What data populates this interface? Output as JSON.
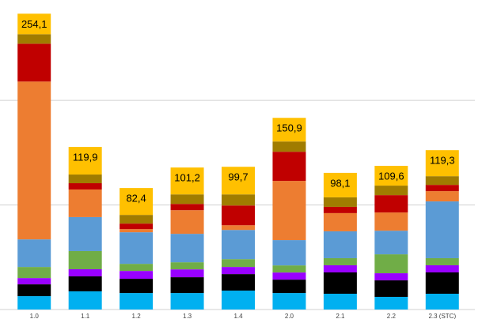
{
  "chart_data": {
    "type": "stacked_bar",
    "categories": [
      "1.0",
      "1.1",
      "1.2",
      "1.3",
      "1.4",
      "2.0",
      "2.1",
      "2.2",
      "2.3 (STC)"
    ],
    "series": [
      {
        "color": "#00b0f0",
        "values": [
          12.8,
          17.4,
          15.8,
          15.8,
          18.1,
          15.8,
          15.1,
          12.1,
          15.1
        ]
      },
      {
        "color": "#000000",
        "values": [
          11.3,
          14.3,
          13.6,
          15.1,
          15.8,
          12.8,
          20.4,
          15.8,
          20.4
        ]
      },
      {
        "color": "#9900ff",
        "values": [
          6,
          6.8,
          7.5,
          7.5,
          6.8,
          6.8,
          6.8,
          6.8,
          6.8
        ]
      },
      {
        "color": "#70ad47",
        "values": [
          10.6,
          17.4,
          6.8,
          6.8,
          7.5,
          6.8,
          6.8,
          18.1,
          6.8
        ]
      },
      {
        "color": "#5b9bd5",
        "values": [
          26.4,
          32.5,
          30.2,
          27.2,
          27.9,
          24.2,
          25.7,
          22.6,
          54.3
        ]
      },
      {
        "color": "#ed7d31",
        "values": [
          150.9,
          26.4,
          3,
          22.6,
          4.5,
          56.6,
          17.4,
          17.4,
          9.8
        ]
      },
      {
        "color": "#c00000",
        "values": [
          36.2,
          6,
          5.3,
          6,
          18.9,
          27.9,
          6,
          16.6,
          6
        ]
      },
      {
        "color": "#a07c00",
        "values": [
          9.1,
          8.3,
          8.3,
          9.1,
          10.6,
          9.8,
          9.1,
          9.1,
          8.3
        ]
      },
      {
        "color": "#ffc000",
        "values": [
          19.6,
          26.4,
          25.7,
          25.7,
          26.4,
          22.6,
          23.4,
          18.9,
          24.9
        ]
      }
    ],
    "totals": {
      "values": [
        254.1,
        119.9,
        82.4,
        101.2,
        99.7,
        150.9,
        98.1,
        109.6,
        119.3
      ],
      "value_labels": [
        "254,1",
        "119,9",
        "82,4",
        "101,2",
        "99,7",
        "150,9",
        "98,1",
        "109,6",
        "119,3"
      ]
    },
    "ylim": [
      0,
      296
    ],
    "yticks": [
      100,
      200
    ],
    "grid": true
  }
}
